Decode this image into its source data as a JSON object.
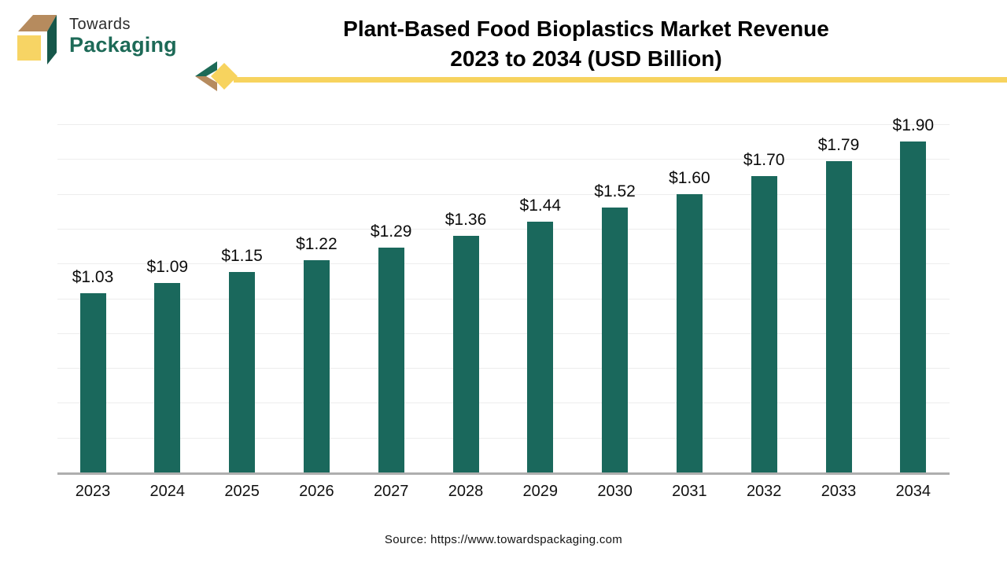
{
  "header": {
    "brand": {
      "name_top": "Towards",
      "name_bottom": "Packaging"
    },
    "title_line1": "Plant-Based Food Bioplastics Market Revenue",
    "title_line2": "2023 to 2034 (USD Billion)"
  },
  "chart_data": {
    "type": "bar",
    "title": "Plant-Based Food Bioplastics Market Revenue 2023 to 2034 (USD Billion)",
    "categories": [
      "2023",
      "2024",
      "2025",
      "2026",
      "2027",
      "2028",
      "2029",
      "2030",
      "2031",
      "2032",
      "2033",
      "2034"
    ],
    "values": [
      1.03,
      1.09,
      1.15,
      1.22,
      1.29,
      1.36,
      1.44,
      1.52,
      1.6,
      1.7,
      1.79,
      1.9
    ],
    "labels": [
      "$1.03",
      "$1.09",
      "$1.15",
      "$1.22",
      "$1.29",
      "$1.36",
      "$1.44",
      "$1.52",
      "$1.60",
      "$1.70",
      "$1.79",
      "$1.90"
    ],
    "xlabel": "",
    "ylabel": "",
    "ylim": [
      0,
      2.0
    ],
    "gridline_step": 0.2,
    "grid": true,
    "legend": false,
    "bar_color": "#1a685c"
  },
  "footer": {
    "source": "Source: https://www.towardspackaging.com"
  },
  "colors": {
    "bar": "#1a685c",
    "accent_yellow": "#f7d35e",
    "logo_tan": "#b68b5e",
    "logo_green": "#1d6a57",
    "cube_side_green": "#16574a",
    "axis_gray": "#aeaeae",
    "gridline": "#ededed",
    "title_black": "#000000"
  }
}
